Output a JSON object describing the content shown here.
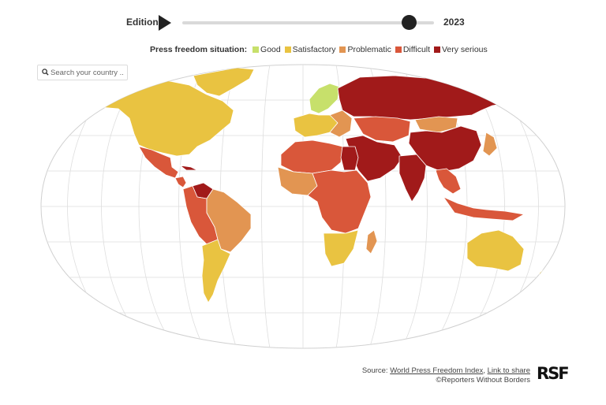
{
  "edition": {
    "label": "Edition",
    "year": "2023",
    "progress": 0.9
  },
  "legend": {
    "title": "Press freedom situation:",
    "items": [
      {
        "label": "Good",
        "color": "#c7e06b"
      },
      {
        "label": "Satisfactory",
        "color": "#e9c341"
      },
      {
        "label": "Problematic",
        "color": "#e29552"
      },
      {
        "label": "Difficult",
        "color": "#d9573a"
      },
      {
        "label": "Very serious",
        "color": "#a11a1a"
      }
    ]
  },
  "search": {
    "placeholder": "Search your country ..."
  },
  "footer": {
    "prefix": "Source: ",
    "source_link": "World Press Freedom Index",
    "sep": ", ",
    "share_link": "Link to share",
    "credit": "©Reporters Without Borders",
    "logo": "RSF"
  },
  "map": {
    "region_colors": {
      "north-america": "#e9c341",
      "mexico": "#d9573a",
      "central-america": "#d9573a",
      "cuba": "#a11a1a",
      "venezuela": "#a11a1a",
      "south-america-north": "#d9573a",
      "brazil": "#e29552",
      "south-america-south": "#e9c341",
      "greenland": "#e9c341",
      "scandinavia": "#c7e06b",
      "western-europe": "#e9c341",
      "eastern-europe": "#e29552",
      "russia": "#a11a1a",
      "central-asia": "#d9573a",
      "mongolia": "#e29552",
      "china": "#a11a1a",
      "middle-east": "#a11a1a",
      "india": "#a11a1a",
      "southeast-asia": "#d9573a",
      "japan": "#e29552",
      "indonesia": "#d9573a",
      "north-africa": "#d9573a",
      "egypt": "#a11a1a",
      "west-africa": "#e29552",
      "central-africa": "#d9573a",
      "southern-africa": "#e9c341",
      "madagascar": "#e29552",
      "australia": "#e9c341",
      "new-zealand": "#e9c341"
    }
  }
}
